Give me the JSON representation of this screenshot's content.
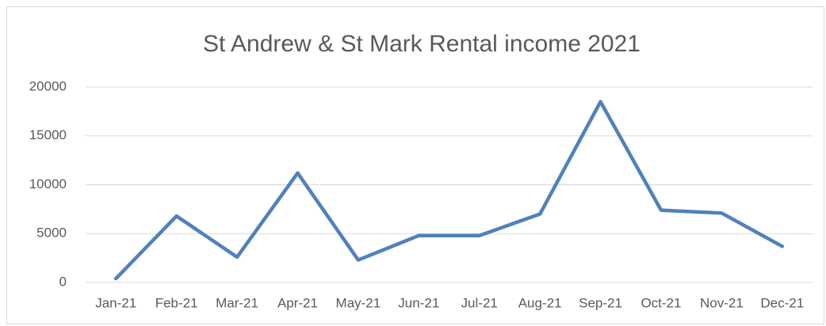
{
  "chart_data": {
    "type": "line",
    "title": "St Andrew & St Mark Rental income 2021",
    "categories": [
      "Jan-21",
      "Feb-21",
      "Mar-21",
      "Apr-21",
      "May-21",
      "Jun-21",
      "Jul-21",
      "Aug-21",
      "Sep-21",
      "Oct-21",
      "Nov-21",
      "Dec-21"
    ],
    "series": [
      {
        "name": "Rental income",
        "color": "#4f81bd",
        "values": [
          400,
          6800,
          2600,
          11200,
          2300,
          4800,
          4800,
          7000,
          18500,
          7400,
          7100,
          3700
        ]
      }
    ],
    "ylim": [
      0,
      20000
    ],
    "yticks": [
      0,
      5000,
      10000,
      15000,
      20000
    ],
    "grid": true
  }
}
